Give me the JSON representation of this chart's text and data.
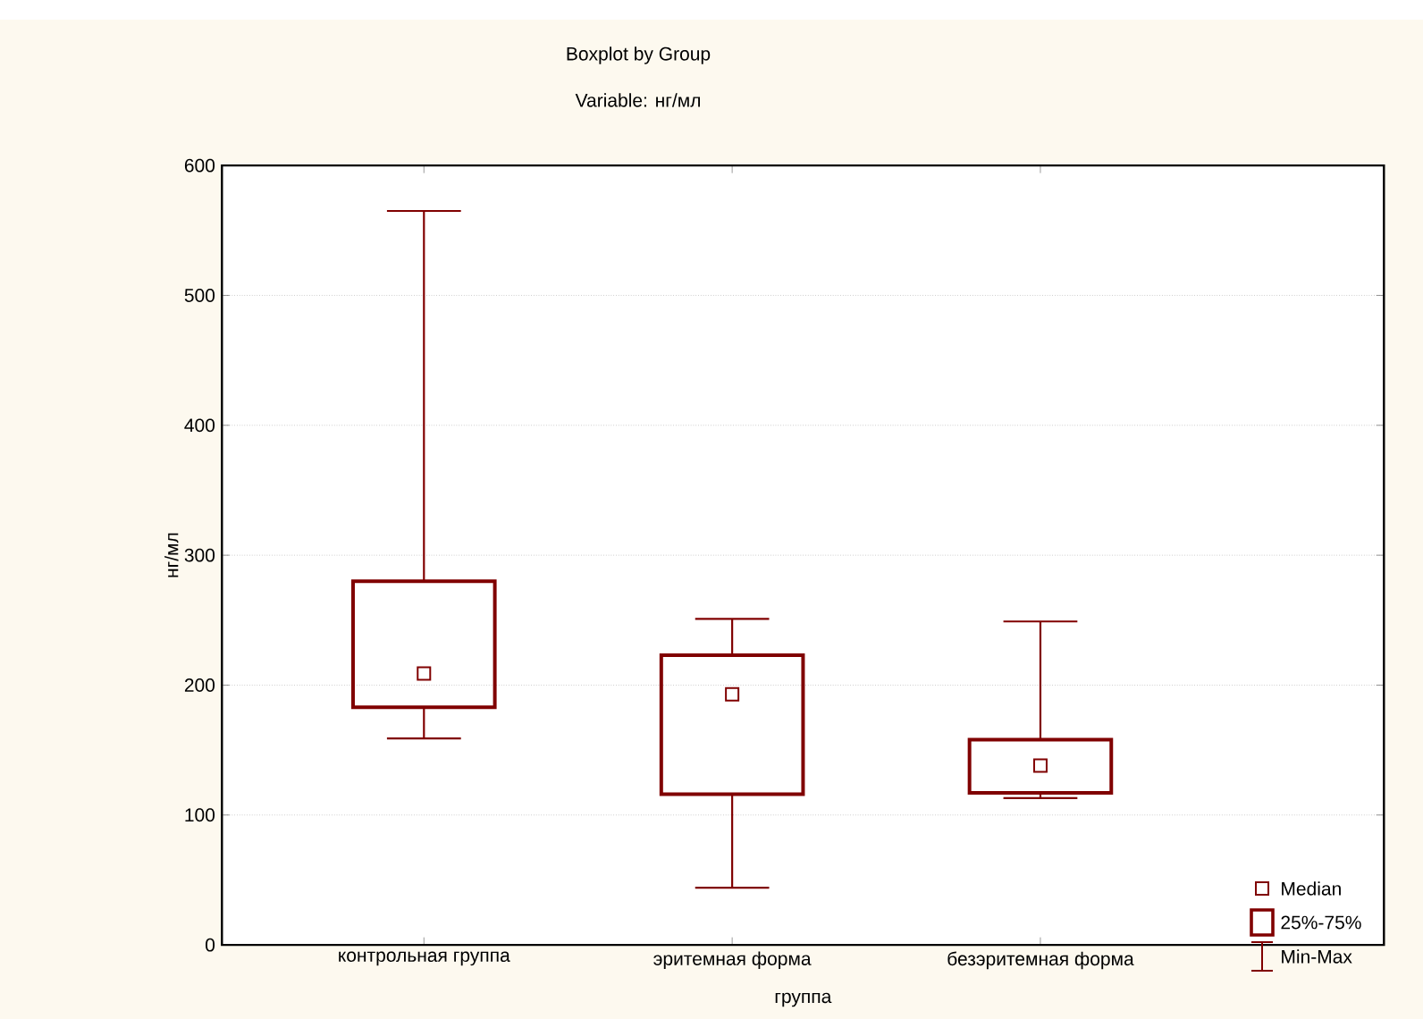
{
  "chart_data": {
    "type": "box",
    "title": "Boxplot by Group",
    "subtitle": "Variable: нг/мл",
    "xlabel": "группа",
    "ylabel": "нг/мл",
    "categories": [
      "контрольная группа",
      "эритемная форма",
      "безэритемная форма"
    ],
    "boxes": [
      {
        "low": 159,
        "q1": 183,
        "median": 209,
        "q3": 280,
        "high": 565
      },
      {
        "low": 44,
        "q1": 116,
        "median": 193,
        "q3": 223,
        "high": 251
      },
      {
        "low": 113,
        "q1": 117,
        "median": 138,
        "q3": 158,
        "high": 249
      }
    ],
    "color": "#800000",
    "marker": "square",
    "ylim": [
      0,
      600
    ],
    "yticks": [
      0,
      100,
      200,
      300,
      400,
      500,
      600
    ],
    "grid": "y",
    "annotations": [
      "Median",
      "25%-75%",
      "Min-Max"
    ]
  }
}
